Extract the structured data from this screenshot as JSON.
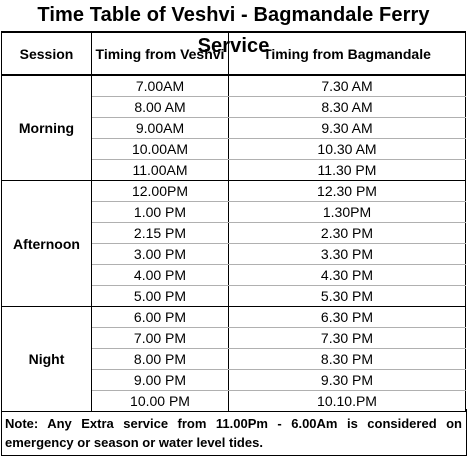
{
  "title": "Time Table of Veshvi - Bagmandale  Ferry Service",
  "headers": {
    "session": "Session",
    "from_veshvi": "Timing from Veshvi",
    "from_bagmandale": "Timing from Bagmandale"
  },
  "sessions": [
    {
      "name": "Morning",
      "rows": [
        {
          "veshvi": "7.00AM",
          "bagmandale": "7.30 AM"
        },
        {
          "veshvi": "8.00 AM",
          "bagmandale": "8.30 AM"
        },
        {
          "veshvi": "9.00AM",
          "bagmandale": "9.30 AM"
        },
        {
          "veshvi": "10.00AM",
          "bagmandale": "10.30 AM"
        },
        {
          "veshvi": "11.00AM",
          "bagmandale": "11.30 PM"
        }
      ]
    },
    {
      "name": "Afternoon",
      "rows": [
        {
          "veshvi": "12.00PM",
          "bagmandale": "12.30 PM"
        },
        {
          "veshvi": "1.00 PM",
          "bagmandale": "1.30PM"
        },
        {
          "veshvi": "2.15 PM",
          "bagmandale": "2.30 PM"
        },
        {
          "veshvi": "3.00 PM",
          "bagmandale": "3.30 PM"
        },
        {
          "veshvi": "4.00 PM",
          "bagmandale": "4.30 PM"
        },
        {
          "veshvi": "5.00 PM",
          "bagmandale": "5.30 PM"
        }
      ]
    },
    {
      "name": "Night",
      "rows": [
        {
          "veshvi": "6.00 PM",
          "bagmandale": "6.30 PM"
        },
        {
          "veshvi": "7.00 PM",
          "bagmandale": "7.30 PM"
        },
        {
          "veshvi": "8.00 PM",
          "bagmandale": "8.30 PM"
        },
        {
          "veshvi": "9.00 PM",
          "bagmandale": "9.30 PM"
        },
        {
          "veshvi": "10.00 PM",
          "bagmandale": "10.10.PM"
        }
      ]
    }
  ],
  "note": "Note: Any Extra service from 11.00Pm - 6.00Am is considered on emergency or season or water level tides."
}
